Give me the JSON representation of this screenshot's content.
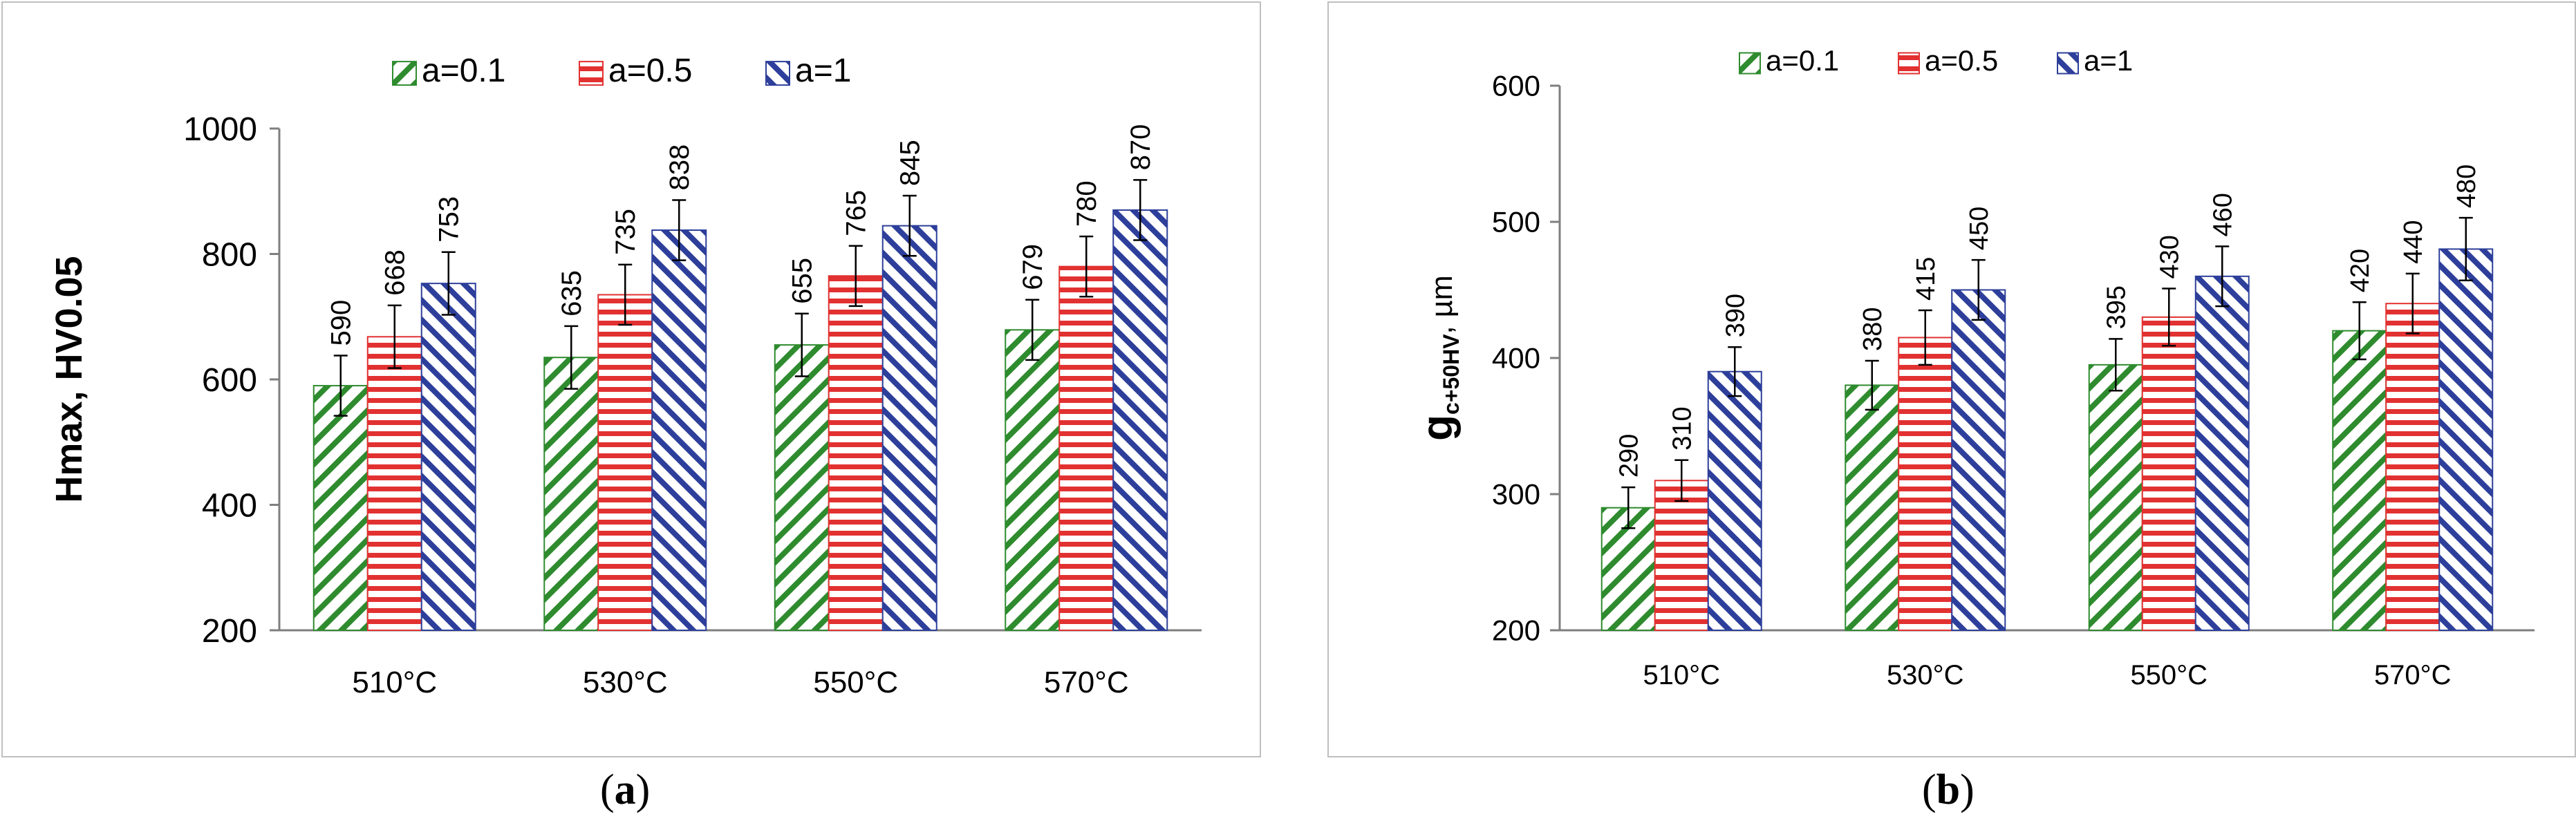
{
  "colors": {
    "green": "#2e8b2e",
    "red": "#e23131",
    "blue": "#2d3f9a",
    "axis": "#7f7f7f",
    "errorbar": "#000000"
  },
  "chart_data": [
    {
      "panel": "a",
      "caption": {
        "open": "(",
        "letter": "a",
        "close": ")"
      },
      "type": "bar",
      "categories": [
        "510°C",
        "530°C",
        "550°C",
        "570°C"
      ],
      "ylabel_main": "Hmax",
      "ylabel_rest": ", HV0.05",
      "ylim": [
        200,
        1000
      ],
      "yticks": [
        200,
        400,
        600,
        800,
        1000
      ],
      "series": [
        {
          "name": "a=0.1",
          "pattern": "green",
          "values": [
            590,
            635,
            655,
            679
          ],
          "errors": [
            48,
            50,
            50,
            48
          ]
        },
        {
          "name": "a=0.5",
          "pattern": "red",
          "values": [
            668,
            735,
            765,
            780
          ],
          "errors": [
            50,
            48,
            48,
            48
          ]
        },
        {
          "name": "a=1",
          "pattern": "blue",
          "values": [
            753,
            838,
            845,
            870
          ],
          "errors": [
            50,
            48,
            48,
            48
          ]
        }
      ]
    },
    {
      "panel": "b",
      "caption": {
        "open": "(",
        "letter": "b",
        "close": ")"
      },
      "type": "bar",
      "categories": [
        "510°C",
        "530°C",
        "550°C",
        "570°C"
      ],
      "ylabel_main": "g",
      "ylabel_sub": "c+50HV",
      "ylabel_rest": ", µm",
      "ylim": [
        200,
        600
      ],
      "yticks": [
        200,
        300,
        400,
        500,
        600
      ],
      "series": [
        {
          "name": "a=0.1",
          "pattern": "green",
          "values": [
            290,
            380,
            395,
            420
          ],
          "errors": [
            15,
            18,
            19,
            21
          ]
        },
        {
          "name": "a=0.5",
          "pattern": "red",
          "values": [
            310,
            415,
            430,
            440
          ],
          "errors": [
            15,
            20,
            21,
            22
          ]
        },
        {
          "name": "a=1",
          "pattern": "blue",
          "values": [
            390,
            450,
            460,
            480
          ],
          "errors": [
            18,
            22,
            22,
            23
          ]
        }
      ]
    }
  ]
}
